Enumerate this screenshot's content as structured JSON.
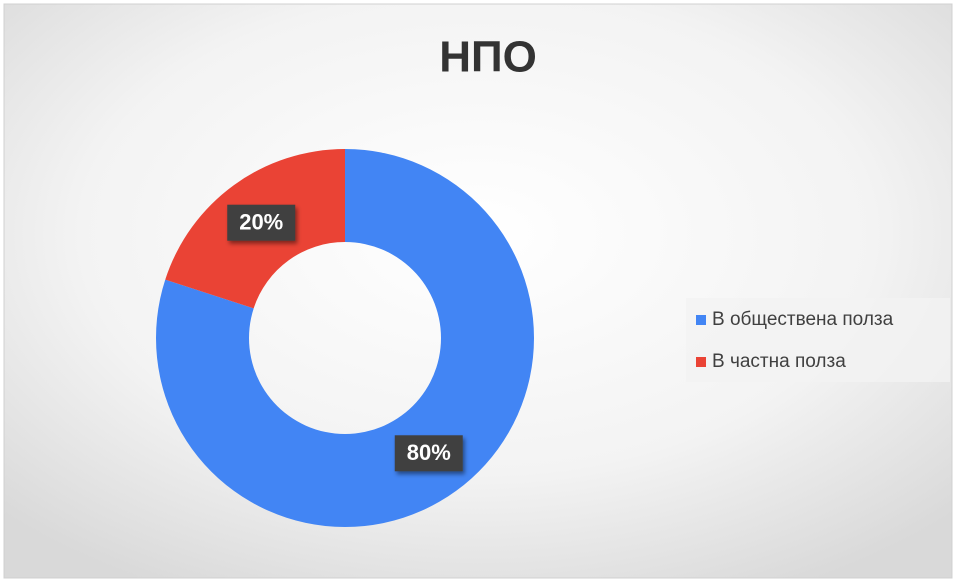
{
  "chart_data": {
    "type": "donut",
    "title": "НПО",
    "categories": [
      "В обществена полза",
      "В частна полза"
    ],
    "values": [
      80,
      20
    ],
    "value_labels": [
      "80%",
      "20%"
    ],
    "colors": [
      "#4285f4",
      "#ea4335"
    ],
    "legend": "right"
  }
}
